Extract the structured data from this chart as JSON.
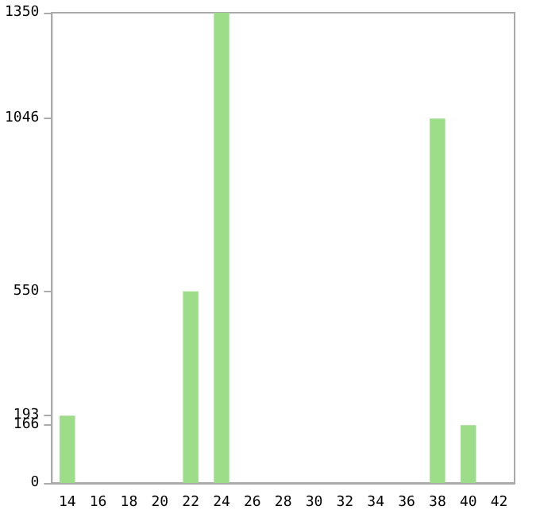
{
  "chart_data": {
    "type": "bar",
    "categories": [
      "14",
      "16",
      "18",
      "20",
      "22",
      "24",
      "26",
      "28",
      "30",
      "32",
      "34",
      "36",
      "38",
      "40",
      "42"
    ],
    "values": [
      193,
      0,
      0,
      0,
      550,
      1350,
      0,
      0,
      0,
      0,
      0,
      0,
      1046,
      166,
      0
    ],
    "color": "#9ddc88",
    "ylim": [
      0,
      1350
    ],
    "yticks": [
      0,
      166,
      193,
      550,
      1046,
      1350
    ],
    "grid": false
  }
}
